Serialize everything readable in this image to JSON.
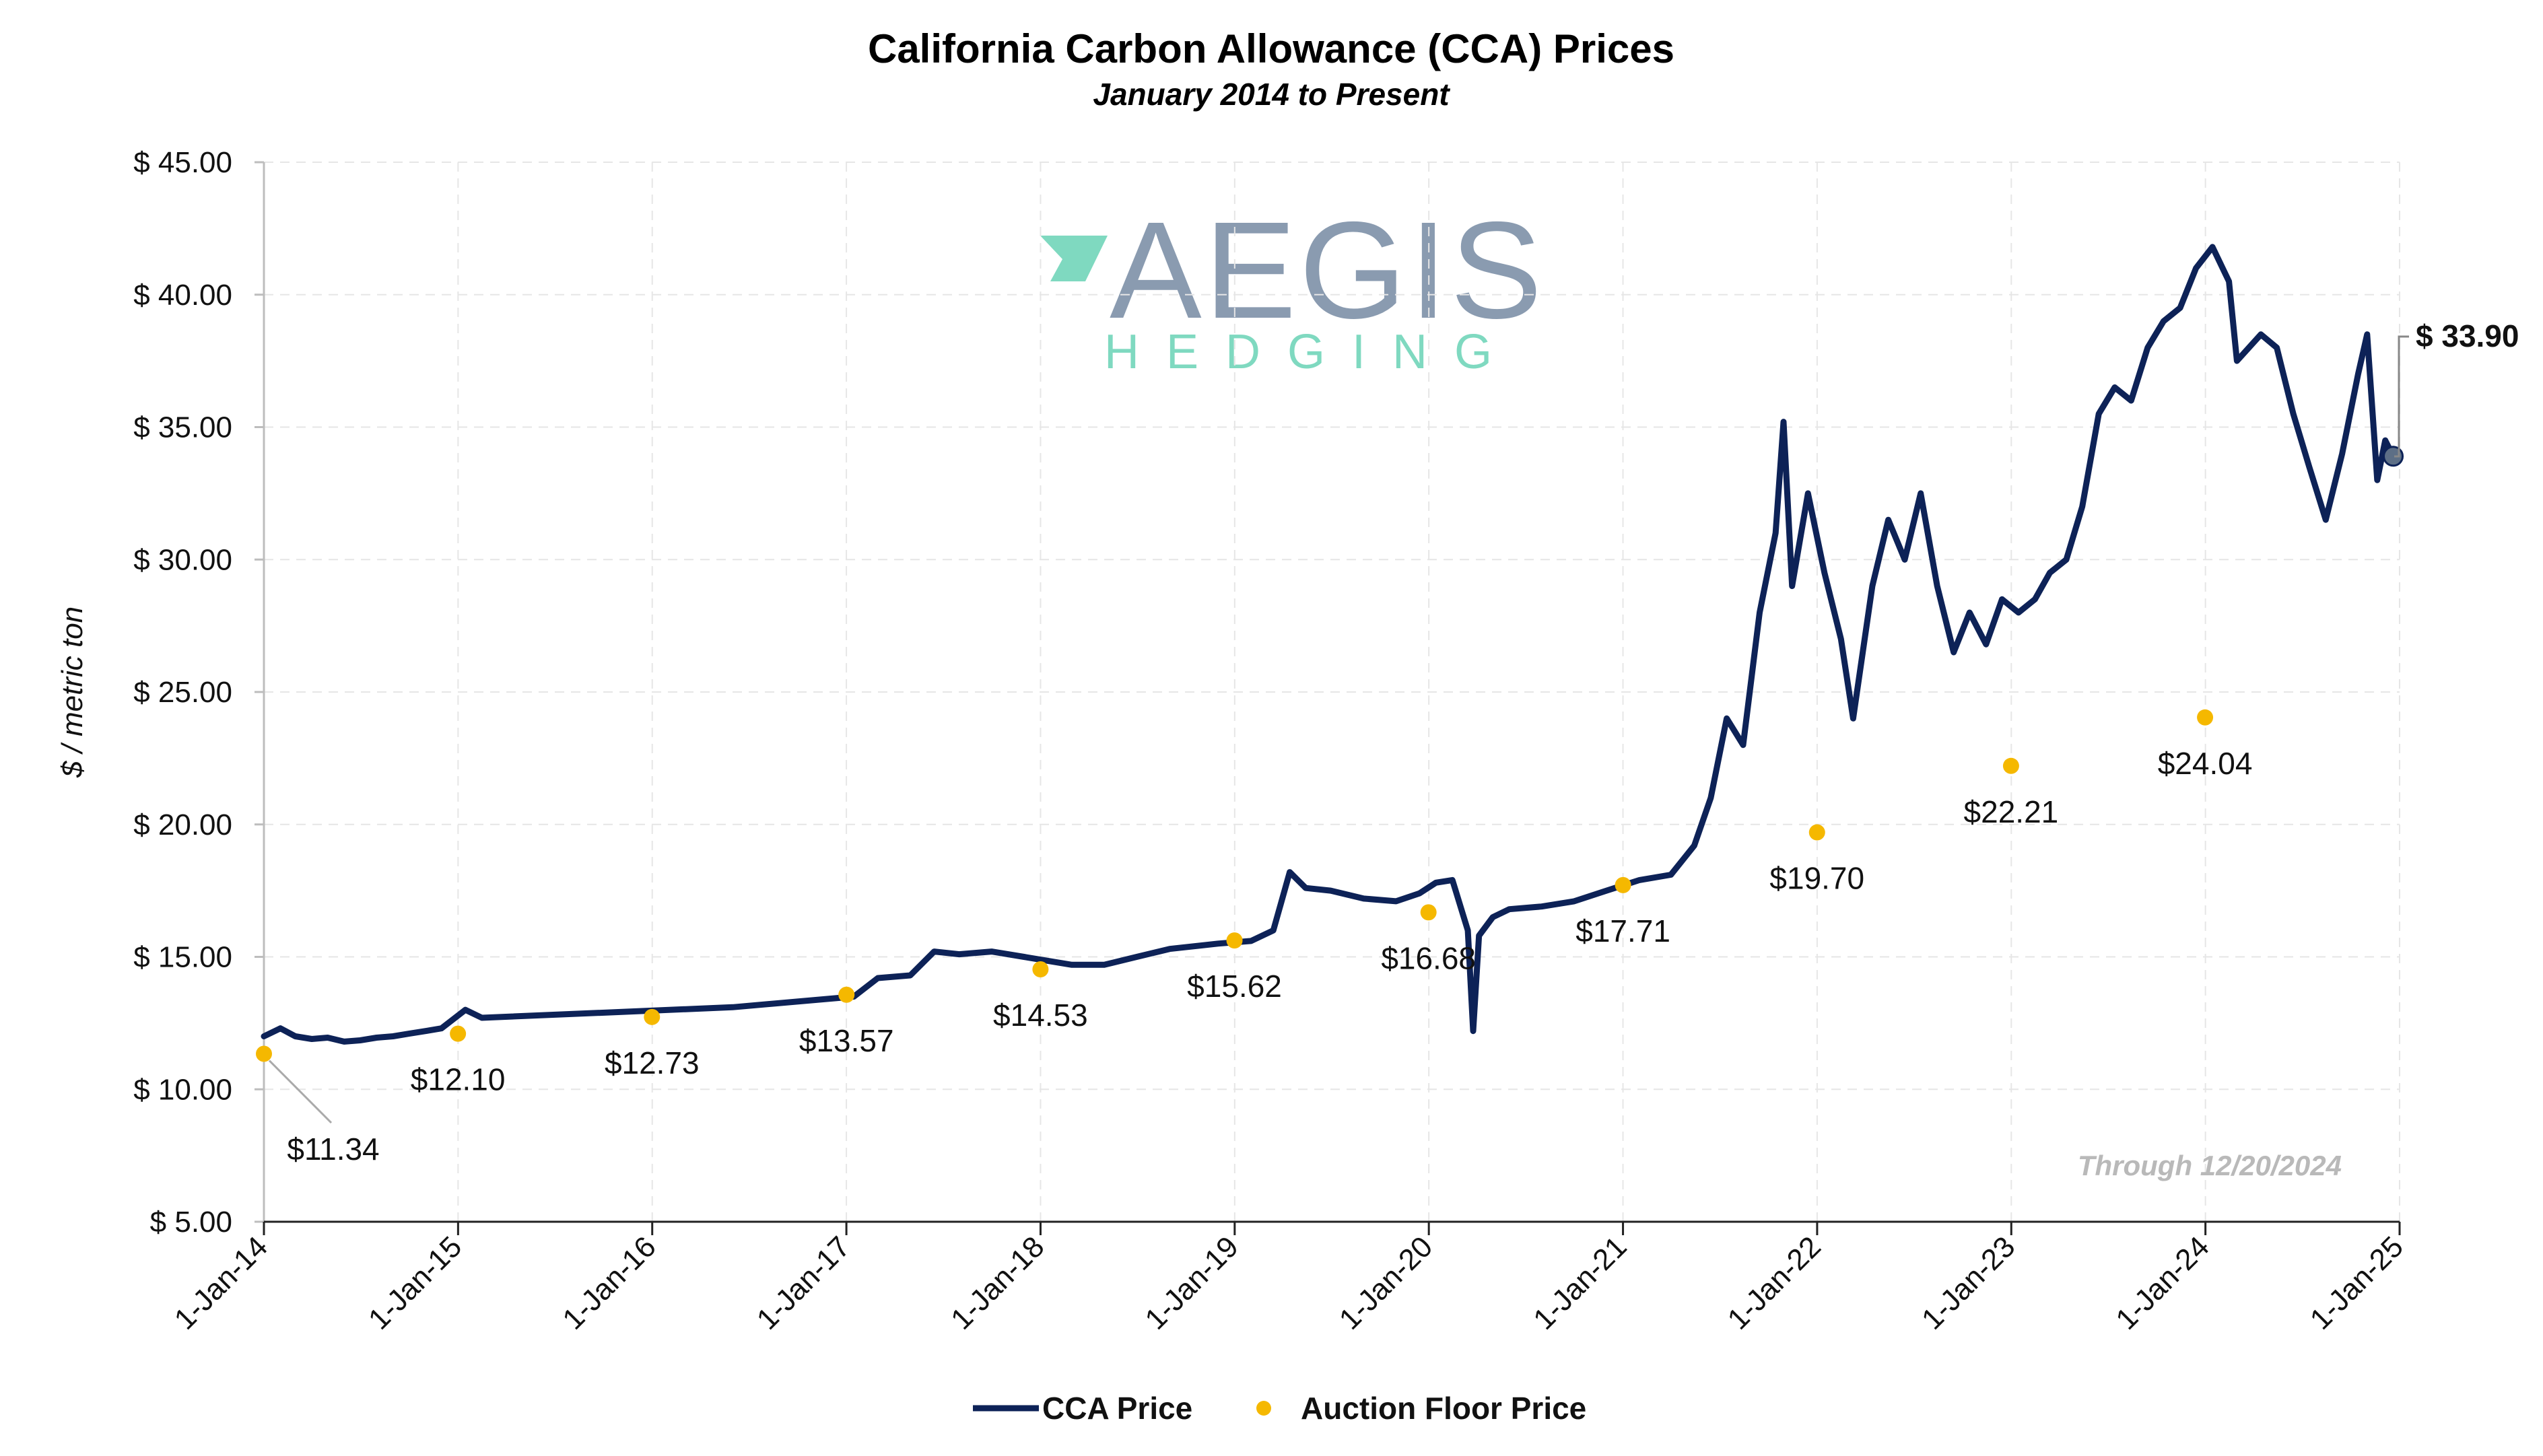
{
  "chart_data": {
    "type": "line",
    "title": "California Carbon Allowance (CCA) Prices",
    "subtitle": "January 2014 to Present",
    "ylabel": "$ / metric ton",
    "xlabel": "",
    "ylim": [
      5,
      45
    ],
    "xlim": [
      "2014-01-01",
      "2025-01-01"
    ],
    "grid": true,
    "legend_position": "bottom",
    "y_ticks": [
      "$ 5.00",
      "$ 10.00",
      "$ 15.00",
      "$ 20.00",
      "$ 25.00",
      "$ 30.00",
      "$ 35.00",
      "$ 40.00",
      "$ 45.00"
    ],
    "x_ticks": [
      "1-Jan-14",
      "1-Jan-15",
      "1-Jan-16",
      "1-Jan-17",
      "1-Jan-18",
      "1-Jan-19",
      "1-Jan-20",
      "1-Jan-21",
      "1-Jan-22",
      "1-Jan-23",
      "1-Jan-24",
      "1-Jan-25"
    ],
    "series": [
      {
        "name": "CCA Price",
        "color": "#0d2257",
        "points": [
          [
            "2014-01-01",
            12.0
          ],
          [
            "2014-02-01",
            12.3
          ],
          [
            "2014-03-01",
            12.0
          ],
          [
            "2014-04-01",
            11.9
          ],
          [
            "2014-05-01",
            11.95
          ],
          [
            "2014-06-01",
            11.8
          ],
          [
            "2014-07-01",
            11.85
          ],
          [
            "2014-08-01",
            11.95
          ],
          [
            "2014-09-01",
            12.0
          ],
          [
            "2014-10-01",
            12.1
          ],
          [
            "2014-11-01",
            12.2
          ],
          [
            "2014-12-01",
            12.3
          ],
          [
            "2015-01-15",
            13.0
          ],
          [
            "2015-02-15",
            12.7
          ],
          [
            "2016-06-01",
            13.1
          ],
          [
            "2017-01-15",
            13.5
          ],
          [
            "2017-03-01",
            14.2
          ],
          [
            "2017-05-01",
            14.3
          ],
          [
            "2017-06-15",
            15.2
          ],
          [
            "2017-08-01",
            15.1
          ],
          [
            "2017-10-01",
            15.2
          ],
          [
            "2017-12-01",
            15.0
          ],
          [
            "2018-03-01",
            14.7
          ],
          [
            "2018-05-01",
            14.7
          ],
          [
            "2018-07-01",
            15.0
          ],
          [
            "2018-09-01",
            15.3
          ],
          [
            "2018-12-01",
            15.5
          ],
          [
            "2019-02-01",
            15.6
          ],
          [
            "2019-03-15",
            16.0
          ],
          [
            "2019-04-15",
            18.2
          ],
          [
            "2019-05-15",
            17.6
          ],
          [
            "2019-07-01",
            17.5
          ],
          [
            "2019-09-01",
            17.2
          ],
          [
            "2019-11-01",
            17.1
          ],
          [
            "2019-12-15",
            17.4
          ],
          [
            "2020-01-15",
            17.8
          ],
          [
            "2020-02-15",
            17.9
          ],
          [
            "2020-03-15",
            16.0
          ],
          [
            "2020-03-25",
            12.2
          ],
          [
            "2020-04-05",
            15.8
          ],
          [
            "2020-05-01",
            16.5
          ],
          [
            "2020-06-01",
            16.8
          ],
          [
            "2020-08-01",
            16.9
          ],
          [
            "2020-10-01",
            17.1
          ],
          [
            "2020-12-01",
            17.5
          ],
          [
            "2021-02-01",
            17.9
          ],
          [
            "2021-04-01",
            18.1
          ],
          [
            "2021-05-15",
            19.2
          ],
          [
            "2021-06-15",
            21.0
          ],
          [
            "2021-07-15",
            24.0
          ],
          [
            "2021-08-15",
            23.0
          ],
          [
            "2021-09-15",
            28.0
          ],
          [
            "2021-10-15",
            31.0
          ],
          [
            "2021-10-30",
            35.2
          ],
          [
            "2021-11-15",
            29.0
          ],
          [
            "2021-12-15",
            32.5
          ],
          [
            "2022-01-15",
            29.5
          ],
          [
            "2022-02-15",
            27.0
          ],
          [
            "2022-03-10",
            24.0
          ],
          [
            "2022-04-15",
            29.0
          ],
          [
            "2022-05-15",
            31.5
          ],
          [
            "2022-06-15",
            30.0
          ],
          [
            "2022-07-15",
            32.5
          ],
          [
            "2022-08-15",
            29.0
          ],
          [
            "2022-09-15",
            26.5
          ],
          [
            "2022-10-15",
            28.0
          ],
          [
            "2022-11-15",
            26.8
          ],
          [
            "2022-12-15",
            28.5
          ],
          [
            "2023-01-15",
            28.0
          ],
          [
            "2023-02-15",
            28.5
          ],
          [
            "2023-03-15",
            29.5
          ],
          [
            "2023-04-15",
            30.0
          ],
          [
            "2023-05-15",
            32.0
          ],
          [
            "2023-06-15",
            35.5
          ],
          [
            "2023-07-15",
            36.5
          ],
          [
            "2023-08-15",
            36.0
          ],
          [
            "2023-09-15",
            38.0
          ],
          [
            "2023-10-15",
            39.0
          ],
          [
            "2023-11-15",
            39.5
          ],
          [
            "2023-12-15",
            41.0
          ],
          [
            "2024-01-15",
            41.8
          ],
          [
            "2024-02-15",
            40.5
          ],
          [
            "2024-03-01",
            37.5
          ],
          [
            "2024-04-15",
            38.5
          ],
          [
            "2024-05-15",
            38.0
          ],
          [
            "2024-06-15",
            35.5
          ],
          [
            "2024-07-15",
            33.5
          ],
          [
            "2024-08-15",
            31.5
          ],
          [
            "2024-09-15",
            34.0
          ],
          [
            "2024-10-15",
            37.0
          ],
          [
            "2024-11-01",
            38.5
          ],
          [
            "2024-11-20",
            33.0
          ],
          [
            "2024-12-05",
            34.5
          ],
          [
            "2024-12-20",
            33.9
          ]
        ]
      },
      {
        "name": "Auction Floor Price",
        "color": "#f5b800",
        "points": [
          [
            "2014-01-01",
            11.34
          ],
          [
            "2015-01-01",
            12.1
          ],
          [
            "2016-01-01",
            12.73
          ],
          [
            "2017-01-01",
            13.57
          ],
          [
            "2018-01-01",
            14.53
          ],
          [
            "2019-01-01",
            15.62
          ],
          [
            "2020-01-01",
            16.68
          ],
          [
            "2021-01-01",
            17.71
          ],
          [
            "2022-01-01",
            19.7
          ],
          [
            "2023-01-01",
            22.21
          ],
          [
            "2024-01-01",
            24.04
          ]
        ],
        "labels": [
          "$11.34",
          "$12.10",
          "$12.73",
          "$13.57",
          "$14.53",
          "$15.62",
          "$16.68",
          "$17.71",
          "$19.70",
          "$22.21",
          "$24.04"
        ]
      }
    ],
    "last_value_label": "$ 33.90",
    "annotation": "Through 12/20/2024"
  },
  "logo": {
    "name": "AEGIS",
    "tagline": "HEDGING",
    "mark_color": "#7fd9c0",
    "text_color": "#8a9bb0"
  }
}
